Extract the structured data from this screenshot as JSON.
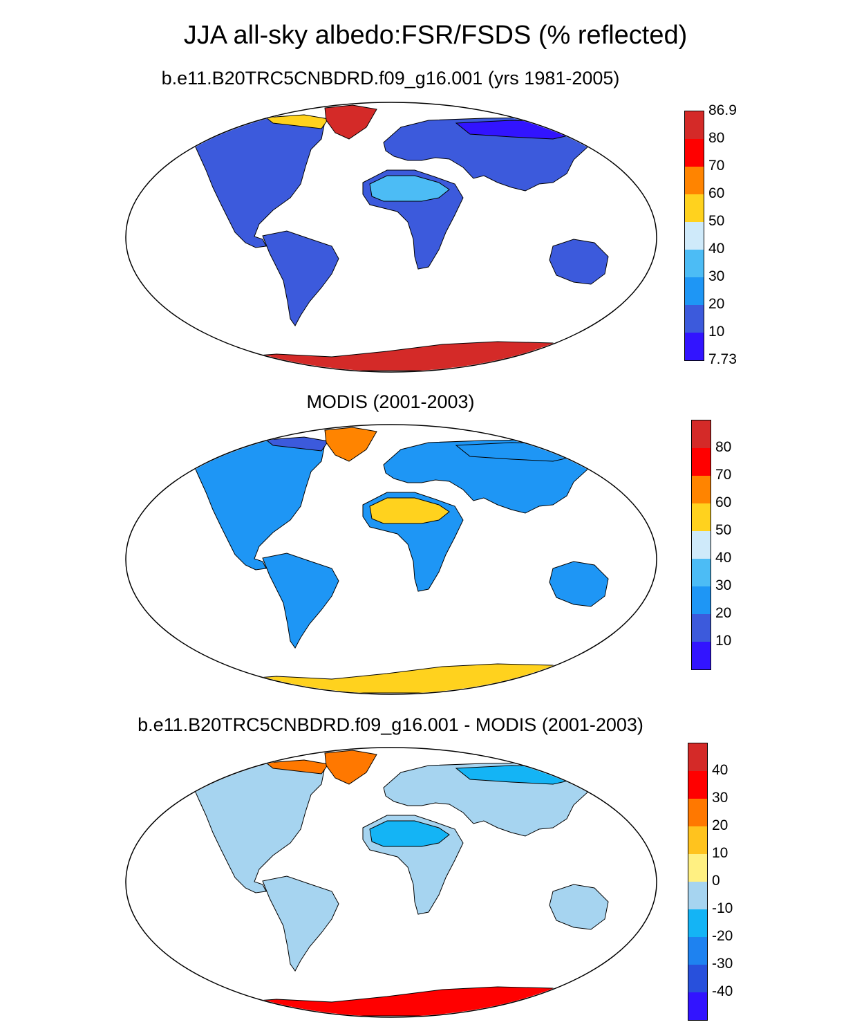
{
  "title": "JJA all-sky albedo:FSR/FSDS (% reflected)",
  "panels": [
    {
      "id": "model",
      "title": "b.e11.B20TRC5CNBDRD.f09_g16.001 (yrs 1981-2005)",
      "colorbar": {
        "labels": [
          "86.9",
          "80",
          "70",
          "60",
          "50",
          "40",
          "30",
          "20",
          "10",
          "7.73"
        ],
        "colors": [
          "#d42a28",
          "#ff0000",
          "#ff8400",
          "#ffd21e",
          "#cfeafa",
          "#4cbcf5",
          "#1e96f5",
          "#3c5adc",
          "#3214ff"
        ]
      },
      "fills": {
        "land": "#3c5adc",
        "sahara": "#4cbcf5",
        "siberia": "#3214ff",
        "greenland": "#d42a28",
        "antarctica": "#d42a28",
        "arctic_edge": "#ffd21e"
      }
    },
    {
      "id": "obs",
      "title": "MODIS (2001-2003)",
      "colorbar": {
        "labels": [
          "80",
          "70",
          "60",
          "50",
          "40",
          "30",
          "20",
          "10"
        ],
        "colors": [
          "#d42a28",
          "#ff0000",
          "#ff8400",
          "#ffd21e",
          "#cfeafa",
          "#4cbcf5",
          "#1e96f5",
          "#3c5adc",
          "#3214ff"
        ]
      },
      "fills": {
        "land": "#1e96f5",
        "sahara": "#ffd21e",
        "siberia": "#1e96f5",
        "greenland": "#ff8400",
        "antarctica": "#ffd21e",
        "arctic_edge": "#3c5adc"
      }
    },
    {
      "id": "diff",
      "title": "b.e11.B20TRC5CNBDRD.f09_g16.001 - MODIS (2001-2003)",
      "colorbar": {
        "labels": [
          "40",
          "30",
          "20",
          "10",
          "0",
          "-10",
          "-20",
          "-30",
          "-40"
        ],
        "colors": [
          "#d42a28",
          "#ff0000",
          "#ff7800",
          "#ffc31e",
          "#fff082",
          "#a6d4f0",
          "#14b4f5",
          "#1e82f0",
          "#2850dc",
          "#3214ff"
        ]
      },
      "fills": {
        "land": "#a6d4f0",
        "sahara": "#14b4f5",
        "siberia": "#14b4f5",
        "greenland": "#ff7800",
        "antarctica": "#ff0000",
        "arctic_edge": "#ff7800"
      }
    }
  ]
}
